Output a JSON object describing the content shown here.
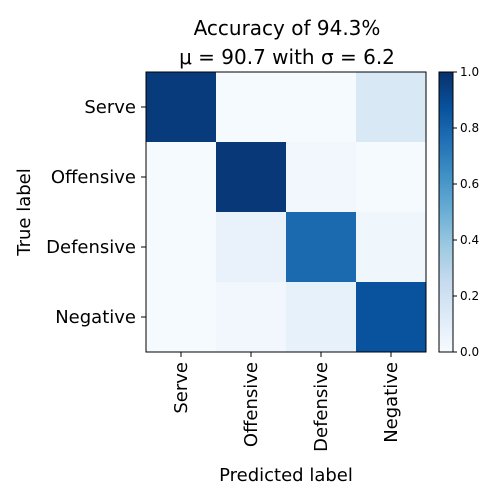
{
  "chart_data": {
    "type": "heatmap",
    "title_line1": "Accuracy of 94.3%",
    "title_line2": "μ = 90.7 with σ = 6.2",
    "xlabel": "Predicted label",
    "ylabel": "True label",
    "x_categories": [
      "Serve",
      "Offensive",
      "Defensive",
      "Negative"
    ],
    "y_categories": [
      "Serve",
      "Offensive",
      "Defensive",
      "Negative"
    ],
    "values": [
      [
        0.96,
        0.01,
        0.01,
        0.15
      ],
      [
        0.01,
        0.97,
        0.03,
        0.01
      ],
      [
        0.01,
        0.07,
        0.78,
        0.04
      ],
      [
        0.01,
        0.03,
        0.08,
        0.87
      ]
    ],
    "colormap": "Blues",
    "vmin": 0.0,
    "vmax": 1.0,
    "colorbar_ticks": [
      "0.0",
      "0.2",
      "0.4",
      "0.6",
      "0.8",
      "1.0"
    ],
    "grid": false
  }
}
